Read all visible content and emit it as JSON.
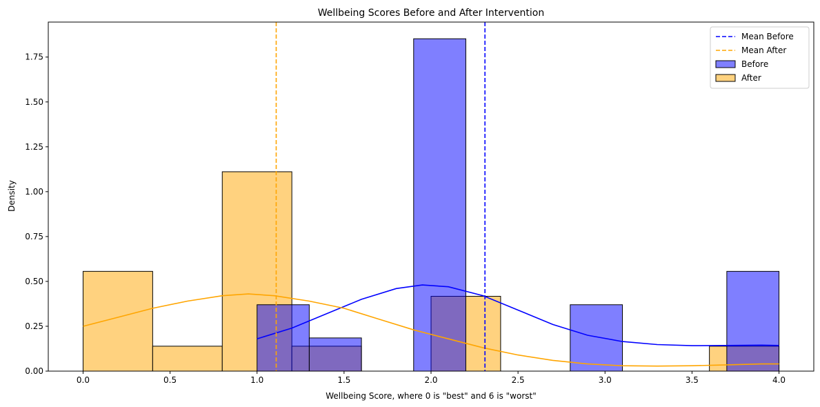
{
  "chart_data": {
    "type": "histogram",
    "title": "Wellbeing Scores Before and After Intervention",
    "xlabel": "Wellbeing Score, where 0 is \"best\" and 6 is \"worst\"",
    "ylabel": "Density",
    "xlim": [
      -0.2,
      4.2
    ],
    "ylim": [
      0,
      1.945
    ],
    "xticks": [
      0.0,
      0.5,
      1.0,
      1.5,
      2.0,
      2.5,
      3.0,
      3.5,
      4.0
    ],
    "xtick_labels": [
      "0.0",
      "0.5",
      "1.0",
      "1.5",
      "2.0",
      "2.5",
      "3.0",
      "3.5",
      "4.0"
    ],
    "yticks": [
      0.0,
      0.25,
      0.5,
      0.75,
      1.0,
      1.25,
      1.5,
      1.75
    ],
    "ytick_labels": [
      "0.00",
      "0.25",
      "0.50",
      "0.75",
      "1.00",
      "1.25",
      "1.50",
      "1.75"
    ],
    "grid": false,
    "legend_position": "top-right",
    "series": [
      {
        "name": "Before",
        "color": "#0000ff",
        "fill": "#8080ff",
        "bins": [
          {
            "start": 1.0,
            "end": 1.3,
            "density": 0.37
          },
          {
            "start": 1.3,
            "end": 1.6,
            "density": 0.185
          },
          {
            "start": 1.6,
            "end": 1.9,
            "density": 0.0
          },
          {
            "start": 1.9,
            "end": 2.2,
            "density": 1.852
          },
          {
            "start": 2.2,
            "end": 2.5,
            "density": 0.0
          },
          {
            "start": 2.5,
            "end": 2.8,
            "density": 0.0
          },
          {
            "start": 2.8,
            "end": 3.1,
            "density": 0.37
          },
          {
            "start": 3.1,
            "end": 3.4,
            "density": 0.0
          },
          {
            "start": 3.4,
            "end": 3.7,
            "density": 0.0
          },
          {
            "start": 3.7,
            "end": 4.0,
            "density": 0.556
          }
        ],
        "kde": [
          [
            1.0,
            0.18
          ],
          [
            1.2,
            0.24
          ],
          [
            1.4,
            0.32
          ],
          [
            1.6,
            0.4
          ],
          [
            1.8,
            0.46
          ],
          [
            1.95,
            0.48
          ],
          [
            2.1,
            0.47
          ],
          [
            2.3,
            0.42
          ],
          [
            2.5,
            0.34
          ],
          [
            2.7,
            0.26
          ],
          [
            2.9,
            0.2
          ],
          [
            3.1,
            0.165
          ],
          [
            3.3,
            0.148
          ],
          [
            3.5,
            0.142
          ],
          [
            3.7,
            0.143
          ],
          [
            3.9,
            0.145
          ],
          [
            4.0,
            0.143
          ]
        ],
        "mean": 2.31,
        "mean_label": "Mean Before"
      },
      {
        "name": "After",
        "color": "#ffa500",
        "fill": "#ffd27f",
        "bins": [
          {
            "start": 0.0,
            "end": 0.4,
            "density": 0.556
          },
          {
            "start": 0.4,
            "end": 0.8,
            "density": 0.139
          },
          {
            "start": 0.8,
            "end": 1.2,
            "density": 1.111
          },
          {
            "start": 1.2,
            "end": 1.6,
            "density": 0.139
          },
          {
            "start": 1.6,
            "end": 2.0,
            "density": 0.0
          },
          {
            "start": 2.0,
            "end": 2.4,
            "density": 0.417
          },
          {
            "start": 2.4,
            "end": 2.8,
            "density": 0.0
          },
          {
            "start": 2.8,
            "end": 3.2,
            "density": 0.0
          },
          {
            "start": 3.2,
            "end": 3.6,
            "density": 0.0
          },
          {
            "start": 3.6,
            "end": 4.0,
            "density": 0.139
          }
        ],
        "kde": [
          [
            0.0,
            0.25
          ],
          [
            0.2,
            0.3
          ],
          [
            0.4,
            0.35
          ],
          [
            0.6,
            0.39
          ],
          [
            0.8,
            0.42
          ],
          [
            0.95,
            0.43
          ],
          [
            1.1,
            0.42
          ],
          [
            1.3,
            0.39
          ],
          [
            1.5,
            0.35
          ],
          [
            1.7,
            0.29
          ],
          [
            1.9,
            0.23
          ],
          [
            2.1,
            0.18
          ],
          [
            2.3,
            0.13
          ],
          [
            2.5,
            0.09
          ],
          [
            2.7,
            0.06
          ],
          [
            2.9,
            0.04
          ],
          [
            3.1,
            0.03
          ],
          [
            3.3,
            0.028
          ],
          [
            3.5,
            0.03
          ],
          [
            3.7,
            0.035
          ],
          [
            3.9,
            0.04
          ],
          [
            4.0,
            0.04
          ]
        ],
        "mean": 1.11,
        "mean_label": "Mean After"
      }
    ],
    "legend": [
      {
        "label": "Mean Before",
        "kind": "dashed-line",
        "color": "#0000ff"
      },
      {
        "label": "Mean After",
        "kind": "dashed-line",
        "color": "#ffa500"
      },
      {
        "label": "Before",
        "kind": "patch",
        "color": "#8080ff"
      },
      {
        "label": "After",
        "kind": "patch",
        "color": "#ffd27f"
      }
    ]
  }
}
